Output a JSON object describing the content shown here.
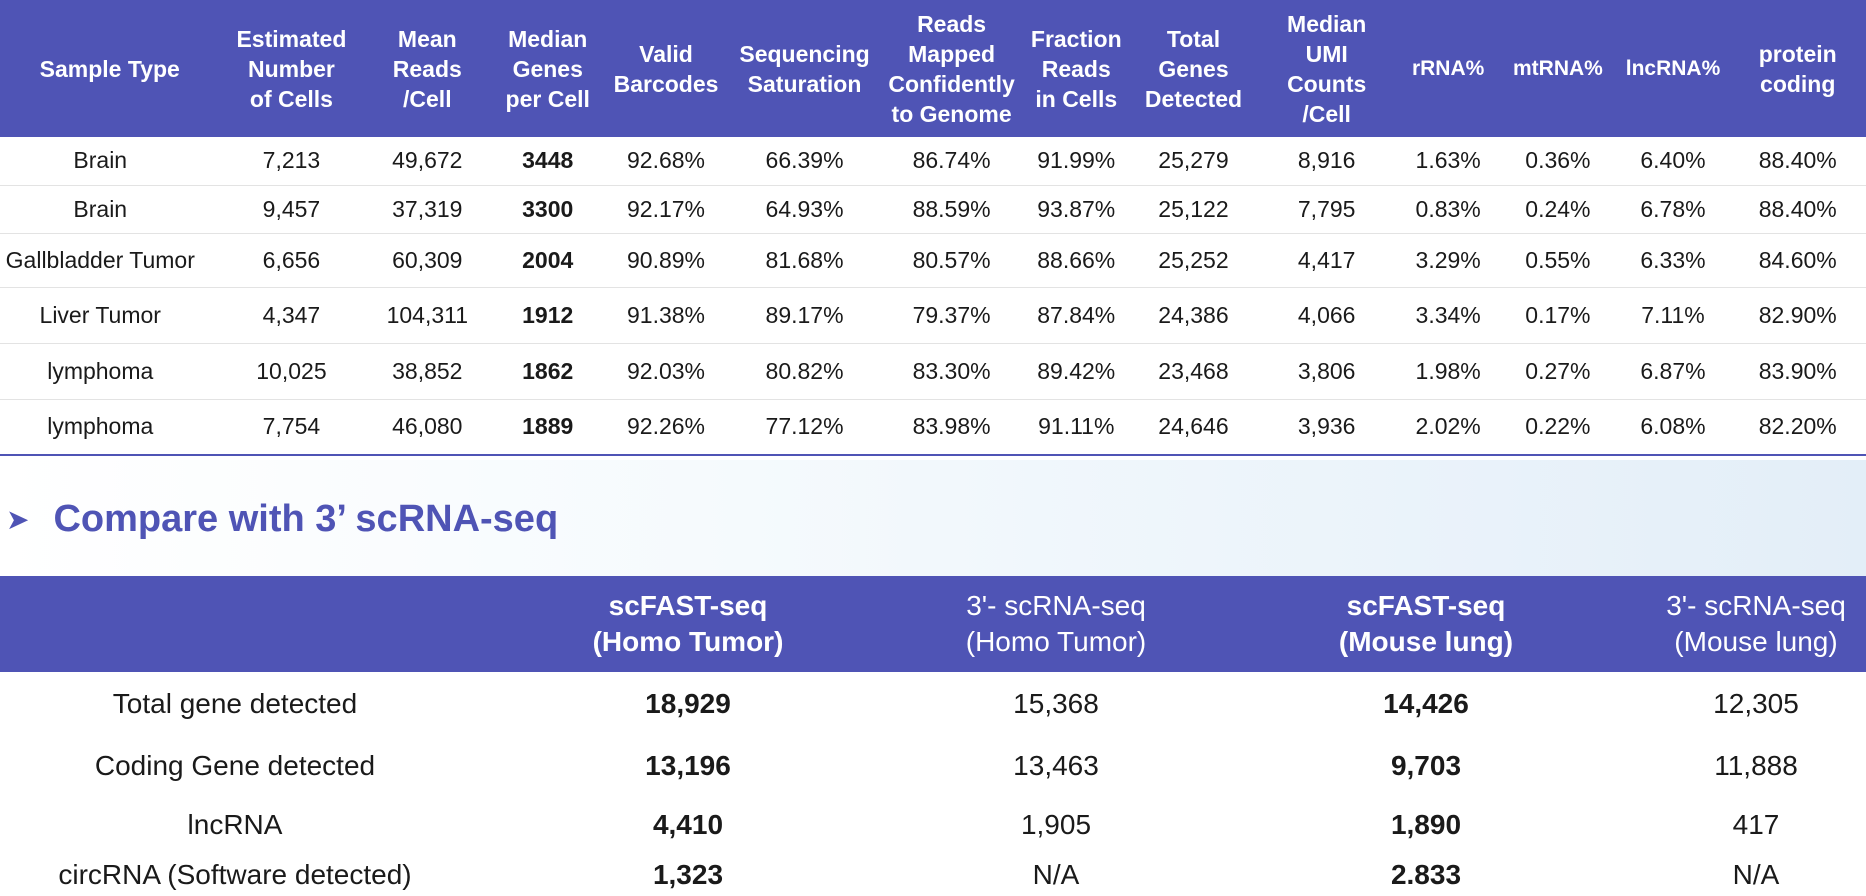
{
  "metrics_table": {
    "headers": [
      "Sample Type",
      "Estimated\nNumber\nof Cells",
      "Mean\nReads\n/Cell",
      "Median\nGenes\nper Cell",
      "Valid\nBarcodes",
      "Sequencing\nSaturation",
      "Reads\nMapped\nConfidently\nto Genome",
      "Fraction\nReads\nin Cells",
      "Total\nGenes\nDetected",
      "Median\nUMI\nCounts\n/Cell",
      "rRNA%",
      "mtRNA%",
      "lncRNA%",
      "protein\ncoding"
    ],
    "rows": [
      [
        "Brain",
        "7,213",
        "49,672",
        "3448",
        "92.68%",
        "66.39%",
        "86.74%",
        "91.99%",
        "25,279",
        "8,916",
        "1.63%",
        "0.36%",
        "6.40%",
        "88.40%"
      ],
      [
        "Brain",
        "9,457",
        "37,319",
        "3300",
        "92.17%",
        "64.93%",
        "88.59%",
        "93.87%",
        "25,122",
        "7,795",
        "0.83%",
        "0.24%",
        "6.78%",
        "88.40%"
      ],
      [
        "Gallbladder Tumor",
        "6,656",
        "60,309",
        "2004",
        "90.89%",
        "81.68%",
        "80.57%",
        "88.66%",
        "25,252",
        "4,417",
        "3.29%",
        "0.55%",
        "6.33%",
        "84.60%"
      ],
      [
        "Liver Tumor",
        "4,347",
        "104,311",
        "1912",
        "91.38%",
        "89.17%",
        "79.37%",
        "87.84%",
        "24,386",
        "4,066",
        "3.34%",
        "0.17%",
        "7.11%",
        "82.90%"
      ],
      [
        "lymphoma",
        "10,025",
        "38,852",
        "1862",
        "92.03%",
        "80.82%",
        "83.30%",
        "89.42%",
        "23,468",
        "3,806",
        "1.98%",
        "0.27%",
        "6.87%",
        "83.90%"
      ],
      [
        "lymphoma",
        "7,754",
        "46,080",
        "1889",
        "92.26%",
        "77.12%",
        "83.98%",
        "91.11%",
        "24,646",
        "3,936",
        "2.02%",
        "0.22%",
        "6.08%",
        "82.20%"
      ]
    ]
  },
  "section": {
    "arrow_icon": "arrow-bullet-icon",
    "title": "Compare with 3’ scRNA-seq"
  },
  "compare_table": {
    "headers": [
      "",
      "scFAST-seq\n(Homo Tumor)",
      "3'- scRNA-seq\n(Homo Tumor)",
      "scFAST-seq\n(Mouse lung)",
      "3'- scRNA-seq\n(Mouse lung)"
    ],
    "rows": [
      [
        "Total gene detected",
        "18,929",
        "15,368",
        "14,426",
        "12,305"
      ],
      [
        "Coding Gene detected",
        "13,196",
        "13,463",
        "9,703",
        "11,888"
      ],
      [
        "lncRNA",
        "4,410",
        "1,905",
        "1,890",
        "417"
      ],
      [
        "circRNA (Software detected)",
        "1,323",
        "N/A",
        "2.833",
        "N/A"
      ]
    ]
  },
  "colors": {
    "header_bg": "#4f54b5",
    "heading_text": "#4f54b5"
  }
}
